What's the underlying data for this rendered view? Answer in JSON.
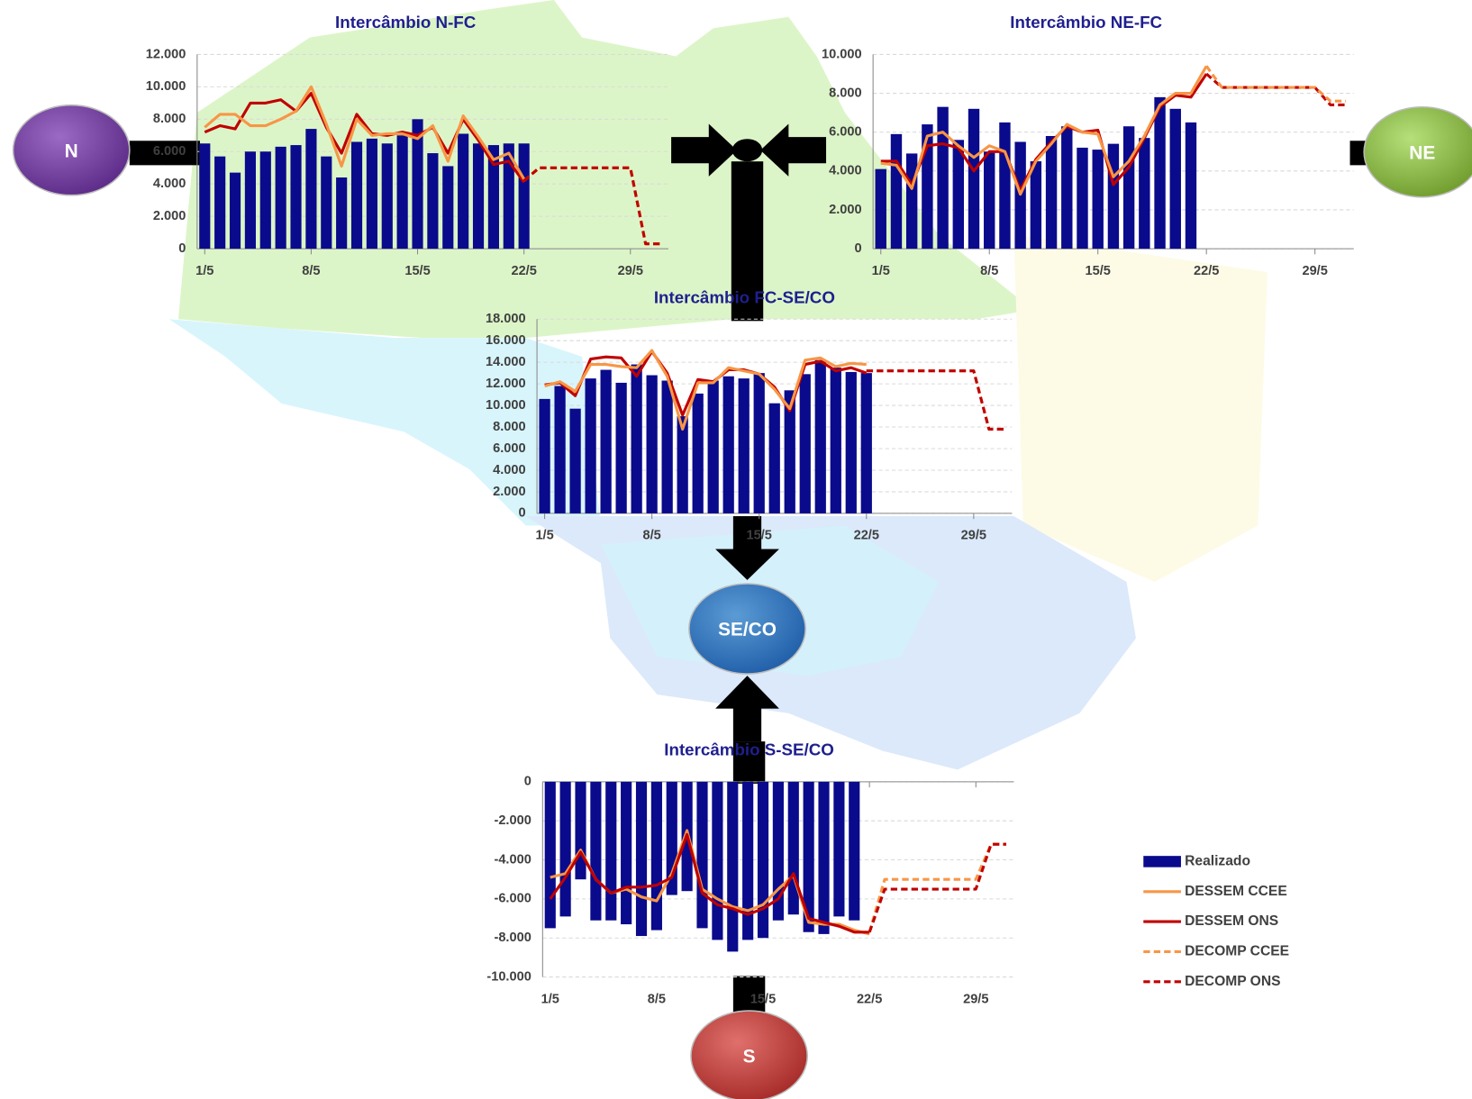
{
  "chart_data": [
    {
      "type": "combo",
      "title": "Intercâmbio N-FC",
      "categories": [
        "1/5",
        null,
        null,
        null,
        null,
        null,
        null,
        "8/5",
        null,
        null,
        null,
        null,
        null,
        null,
        "15/5",
        null,
        null,
        null,
        null,
        null,
        null,
        "22/5",
        null,
        null,
        null,
        null,
        null,
        null,
        "29/5",
        null,
        null
      ],
      "ylim": [
        0,
        12000
      ],
      "yticks": [
        0,
        {
          "value": 2000,
          "label": "2.000"
        },
        {
          "value": 4000,
          "label": "4.000"
        },
        {
          "value": 6000,
          "label": "6.000"
        },
        {
          "value": 8000,
          "label": "8.000"
        },
        {
          "value": 10000,
          "label": "10.000"
        },
        {
          "value": 12000,
          "label": "12.000"
        }
      ],
      "grid": true,
      "series": [
        {
          "kind": "bar",
          "color": "#0a0a8c",
          "values": [
            6500,
            5700,
            4700,
            6000,
            6000,
            6300,
            6400,
            7400,
            5700,
            4400,
            6600,
            6800,
            6500,
            7000,
            8000,
            5900,
            5100,
            7100,
            6500,
            6400,
            6500,
            6500,
            null,
            null,
            null,
            null,
            null,
            null,
            null,
            null,
            null
          ]
        },
        {
          "kind": "line",
          "color": "#c00000",
          "values": [
            7200,
            7600,
            7400,
            9000,
            9000,
            9200,
            8500,
            9600,
            7500,
            5900,
            8300,
            7100,
            7000,
            7200,
            7000,
            7500,
            5900,
            8000,
            6700,
            5200,
            5400,
            4100,
            null,
            null,
            null,
            null,
            null,
            null,
            null,
            null,
            null
          ]
        },
        {
          "kind": "line",
          "color": "#f79646",
          "values": [
            7500,
            8300,
            8300,
            7600,
            7600,
            8000,
            8500,
            10000,
            7700,
            5100,
            8000,
            7000,
            7100,
            7100,
            6800,
            7600,
            5400,
            8200,
            6900,
            5500,
            5900,
            4300,
            null,
            null,
            null,
            null,
            null,
            null,
            null,
            null,
            null
          ]
        },
        {
          "kind": "dash",
          "color": "#f79646",
          "values": [
            null,
            null,
            null,
            null,
            null,
            null,
            null,
            null,
            null,
            null,
            null,
            null,
            null,
            null,
            null,
            null,
            null,
            null,
            null,
            null,
            null,
            4200,
            5000,
            5000,
            5000,
            5000,
            5000,
            5000,
            5000,
            300,
            300
          ]
        },
        {
          "kind": "dash",
          "color": "#c00000",
          "values": [
            null,
            null,
            null,
            null,
            null,
            null,
            null,
            null,
            null,
            null,
            null,
            null,
            null,
            null,
            null,
            null,
            null,
            null,
            null,
            null,
            null,
            4200,
            5000,
            5000,
            5000,
            5000,
            5000,
            5000,
            5000,
            300,
            300
          ]
        }
      ]
    },
    {
      "type": "combo",
      "title": "Intercâmbio NE-FC",
      "categories": [
        "1/5",
        null,
        null,
        null,
        null,
        null,
        null,
        "8/5",
        null,
        null,
        null,
        null,
        null,
        null,
        "15/5",
        null,
        null,
        null,
        null,
        null,
        null,
        "22/5",
        null,
        null,
        null,
        null,
        null,
        null,
        "29/5",
        null,
        null
      ],
      "ylim": [
        0,
        10000
      ],
      "yticks": [
        0,
        {
          "value": 2000,
          "label": "2.000"
        },
        {
          "value": 4000,
          "label": "4.000"
        },
        {
          "value": 6000,
          "label": "6.000"
        },
        {
          "value": 8000,
          "label": "8.000"
        },
        {
          "value": 10000,
          "label": "10.000"
        }
      ],
      "grid": true,
      "series": [
        {
          "kind": "bar",
          "color": "#0a0a8c",
          "values": [
            4100,
            5900,
            4900,
            6400,
            7300,
            5600,
            7200,
            5000,
            6500,
            5500,
            4500,
            5800,
            6300,
            5200,
            5100,
            5400,
            6300,
            5700,
            7800,
            7200,
            6500,
            null,
            null,
            null,
            null,
            null,
            null,
            null,
            null,
            null,
            null
          ]
        },
        {
          "kind": "line",
          "color": "#c00000",
          "values": [
            4500,
            4500,
            3300,
            5300,
            5400,
            5200,
            4000,
            5000,
            5000,
            3000,
            4600,
            5500,
            6300,
            6000,
            6100,
            3300,
            4200,
            5700,
            7300,
            7900,
            7800,
            9000,
            null,
            null,
            null,
            null,
            null,
            null,
            null,
            null,
            null
          ]
        },
        {
          "kind": "line",
          "color": "#f79646",
          "values": [
            4400,
            4300,
            3100,
            5800,
            6000,
            5300,
            4700,
            5300,
            5000,
            2800,
            4500,
            5400,
            6400,
            6000,
            5900,
            3700,
            4500,
            5800,
            7400,
            8000,
            8000,
            9400,
            null,
            null,
            null,
            null,
            null,
            null,
            null,
            null,
            null
          ]
        },
        {
          "kind": "dash",
          "color": "#c00000",
          "values": [
            null,
            null,
            null,
            null,
            null,
            null,
            null,
            null,
            null,
            null,
            null,
            null,
            null,
            null,
            null,
            null,
            null,
            null,
            null,
            null,
            null,
            9000,
            8300,
            8300,
            8300,
            8300,
            8300,
            8300,
            8300,
            7400,
            7400
          ]
        },
        {
          "kind": "dash",
          "color": "#f79646",
          "values": [
            null,
            null,
            null,
            null,
            null,
            null,
            null,
            null,
            null,
            null,
            null,
            null,
            null,
            null,
            null,
            null,
            null,
            null,
            null,
            null,
            null,
            9400,
            8300,
            8300,
            8300,
            8300,
            8300,
            8300,
            8300,
            7600,
            7600
          ]
        }
      ]
    },
    {
      "type": "combo",
      "title": "Intercâmbio FC-SE/CO",
      "categories": [
        "1/5",
        null,
        null,
        null,
        null,
        null,
        null,
        "8/5",
        null,
        null,
        null,
        null,
        null,
        null,
        "15/5",
        null,
        null,
        null,
        null,
        null,
        null,
        "22/5",
        null,
        null,
        null,
        null,
        null,
        null,
        "29/5",
        null,
        null
      ],
      "ylim": [
        0,
        18000
      ],
      "yticks": [
        0,
        {
          "value": 2000,
          "label": "2.000"
        },
        {
          "value": 4000,
          "label": "4.000"
        },
        {
          "value": 6000,
          "label": "6.000"
        },
        {
          "value": 8000,
          "label": "8.000"
        },
        {
          "value": 10000,
          "label": "10.000"
        },
        {
          "value": 12000,
          "label": "12.000"
        },
        {
          "value": 14000,
          "label": "14.000"
        },
        {
          "value": 16000,
          "label": "16.000"
        },
        {
          "value": 18000,
          "label": "18.000"
        }
      ],
      "grid": true,
      "series": [
        {
          "kind": "bar",
          "color": "#0a0a8c",
          "values": [
            10600,
            11800,
            9700,
            12500,
            13300,
            12100,
            13800,
            12800,
            12300,
            9000,
            11100,
            12300,
            12700,
            12500,
            13000,
            10200,
            11400,
            12900,
            14200,
            13500,
            13100,
            13000,
            null,
            null,
            null,
            null,
            null,
            null,
            null,
            null,
            null
          ]
        },
        {
          "kind": "line",
          "color": "#c00000",
          "values": [
            11900,
            12100,
            10900,
            14300,
            14500,
            14400,
            12700,
            15000,
            13000,
            9100,
            12400,
            12200,
            13300,
            13300,
            12900,
            11700,
            9500,
            13800,
            14100,
            13200,
            13500,
            13000,
            null,
            null,
            null,
            null,
            null,
            null,
            null,
            null,
            null
          ]
        },
        {
          "kind": "line",
          "color": "#f79646",
          "values": [
            11800,
            12200,
            11300,
            13800,
            13800,
            13600,
            13500,
            15100,
            12700,
            7800,
            12100,
            12100,
            13500,
            13200,
            12900,
            11500,
            9700,
            14200,
            14400,
            13600,
            13900,
            13800,
            null,
            null,
            null,
            null,
            null,
            null,
            null,
            null,
            null
          ]
        },
        {
          "kind": "dash",
          "color": "#f79646",
          "values": [
            null,
            null,
            null,
            null,
            null,
            null,
            null,
            null,
            null,
            null,
            null,
            null,
            null,
            null,
            null,
            null,
            null,
            null,
            null,
            null,
            null,
            13200,
            13200,
            13200,
            13200,
            13200,
            13200,
            13200,
            13200,
            7800,
            7800
          ]
        },
        {
          "kind": "dash",
          "color": "#c00000",
          "values": [
            null,
            null,
            null,
            null,
            null,
            null,
            null,
            null,
            null,
            null,
            null,
            null,
            null,
            null,
            null,
            null,
            null,
            null,
            null,
            null,
            null,
            13200,
            13200,
            13200,
            13200,
            13200,
            13200,
            13200,
            13200,
            7800,
            7800
          ]
        }
      ]
    },
    {
      "type": "combo",
      "title": "Intercâmbio S-SE/CO",
      "categories": [
        "1/5",
        null,
        null,
        null,
        null,
        null,
        null,
        "8/5",
        null,
        null,
        null,
        null,
        null,
        null,
        "15/5",
        null,
        null,
        null,
        null,
        null,
        null,
        "22/5",
        null,
        null,
        null,
        null,
        null,
        null,
        "29/5",
        null,
        null
      ],
      "ylim": [
        -10000,
        0
      ],
      "yticks": [
        {
          "value": -10000,
          "label": "-10.000"
        },
        {
          "value": -8000,
          "label": "-8.000"
        },
        {
          "value": -6000,
          "label": "-6.000"
        },
        {
          "value": -4000,
          "label": "-4.000"
        },
        {
          "value": -2000,
          "label": "-2.000"
        },
        0
      ],
      "grid": true,
      "legend": "right",
      "series": [
        {
          "name": "Realizado",
          "kind": "bar",
          "color": "#0a0a8c",
          "values": [
            -7500,
            -6900,
            -5000,
            -7100,
            -7100,
            -7300,
            -7900,
            -7600,
            -5800,
            -5600,
            -7500,
            -8100,
            -8700,
            -8100,
            -8000,
            -7100,
            -6800,
            -7700,
            -7800,
            -6900,
            -7100,
            null,
            null,
            null,
            null,
            null,
            null,
            null,
            null,
            null,
            null
          ]
        },
        {
          "name": "DESSEM CCEE",
          "kind": "line",
          "color": "#f79646",
          "values": [
            -4900,
            -4700,
            -3500,
            -5000,
            -5700,
            -5500,
            -5900,
            -6100,
            -4700,
            -2500,
            -5500,
            -6000,
            -6400,
            -6600,
            -6300,
            -5500,
            -4800,
            -7200,
            -7300,
            -7300,
            -7600,
            -7800,
            null,
            null,
            null,
            null,
            null,
            null,
            null,
            null,
            null
          ]
        },
        {
          "name": "DESSEM ONS",
          "kind": "line",
          "color": "#c00000",
          "values": [
            -6000,
            -4900,
            -3600,
            -5000,
            -5700,
            -5400,
            -5400,
            -5300,
            -4900,
            -2700,
            -5700,
            -6300,
            -6500,
            -6800,
            -6500,
            -6000,
            -4700,
            -7000,
            -7200,
            -7400,
            -7700,
            -7700,
            null,
            null,
            null,
            null,
            null,
            null,
            null,
            null,
            null
          ]
        },
        {
          "name": "DECOMP CCEE",
          "kind": "dash",
          "color": "#f79646",
          "values": [
            null,
            null,
            null,
            null,
            null,
            null,
            null,
            null,
            null,
            null,
            null,
            null,
            null,
            null,
            null,
            null,
            null,
            null,
            null,
            null,
            null,
            -7700,
            -5000,
            -5000,
            -5000,
            -5000,
            -5000,
            -5000,
            -5000,
            -3200,
            -3200
          ]
        },
        {
          "name": "DECOMP ONS",
          "kind": "dash",
          "color": "#c00000",
          "values": [
            null,
            null,
            null,
            null,
            null,
            null,
            null,
            null,
            null,
            null,
            null,
            null,
            null,
            null,
            null,
            null,
            null,
            null,
            null,
            null,
            null,
            -7700,
            -5500,
            -5500,
            -5500,
            -5500,
            -5500,
            -5500,
            -5500,
            -3200,
            -3200
          ]
        }
      ]
    }
  ],
  "nodes": [
    {
      "label": "N"
    },
    {
      "label": "NE"
    },
    {
      "label": "SE/CO"
    },
    {
      "label": "S"
    }
  ]
}
